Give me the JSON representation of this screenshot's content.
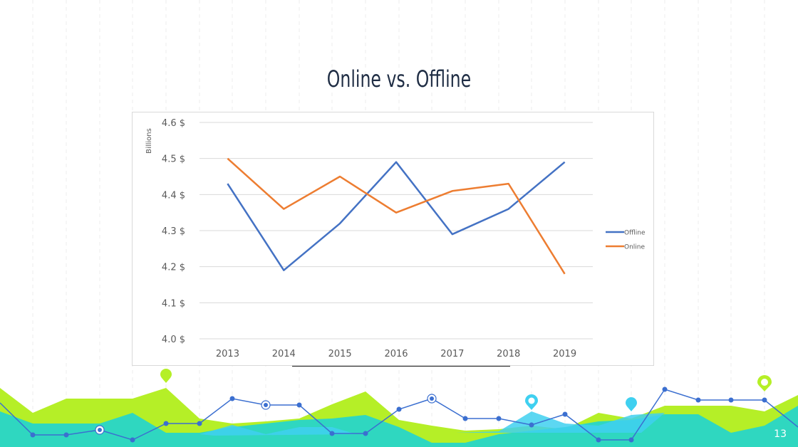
{
  "slide": {
    "title": "Online vs. Offline",
    "page_number": "13"
  },
  "colors": {
    "offline": "#4472c4",
    "online": "#ed7d31",
    "gridline": "#d9d9d9",
    "axis_text": "#595959",
    "deco_green": "#b5ef27",
    "deco_teal": "#2fd7c0",
    "deco_cyan": "#3fd0f0",
    "deco_line": "#3b6fd0"
  },
  "chart_data": {
    "type": "line",
    "title": "",
    "xlabel": "",
    "ylabel": "Billions",
    "categories": [
      "2013",
      "2014",
      "2015",
      "2016",
      "2017",
      "2018",
      "2019"
    ],
    "y_ticks": [
      "4.0 $",
      "4.1 $",
      "4.2 $",
      "4.3 $",
      "4.4 $",
      "4.5 $",
      "4.6 $"
    ],
    "ylim": [
      4.0,
      4.6
    ],
    "grid": true,
    "legend_position": "right",
    "series": [
      {
        "name": "Offline",
        "values": [
          4.43,
          4.19,
          4.32,
          4.49,
          4.29,
          4.36,
          4.49
        ]
      },
      {
        "name": "Online",
        "values": [
          4.5,
          4.36,
          4.45,
          4.35,
          4.41,
          4.43,
          4.18
        ]
      }
    ]
  },
  "decorations": {
    "markers": [
      {
        "color": "green",
        "icon": "map-pin-icon"
      },
      {
        "color": "cyan",
        "icon": "map-pin-icon"
      },
      {
        "color": "cyan",
        "icon": "map-pin-icon"
      },
      {
        "color": "green-outline",
        "icon": "map-pin-icon"
      }
    ]
  }
}
